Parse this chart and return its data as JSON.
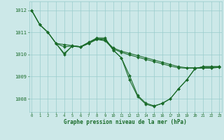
{
  "background_color": "#cce8e8",
  "grid_color": "#99cccc",
  "line_color": "#1a6b2a",
  "marker_color": "#1a6b2a",
  "xlabel": "Graphe pression niveau de la mer (hPa)",
  "xlabel_color": "#1a6b2a",
  "ylabel_ticks": [
    1008,
    1009,
    1010,
    1011,
    1012
  ],
  "xticks": [
    0,
    1,
    2,
    3,
    4,
    5,
    6,
    7,
    8,
    9,
    10,
    11,
    12,
    13,
    14,
    15,
    16,
    17,
    18,
    19,
    20,
    21,
    22,
    23
  ],
  "ylim": [
    1007.4,
    1012.4
  ],
  "xlim": [
    -0.3,
    23.3
  ],
  "series": [
    {
      "x": [
        0,
        1,
        2,
        3,
        4,
        5,
        6,
        7,
        8,
        9,
        10,
        11,
        12,
        13,
        14,
        15,
        16,
        17,
        18,
        19,
        20,
        21,
        22,
        23
      ],
      "y": [
        1012.0,
        1011.35,
        1011.0,
        1010.5,
        1010.45,
        1010.4,
        1010.35,
        1010.5,
        1010.7,
        1010.65,
        1010.3,
        1010.15,
        1010.05,
        1009.95,
        1009.85,
        1009.75,
        1009.65,
        1009.55,
        1009.45,
        1009.4,
        1009.4,
        1009.4,
        1009.4,
        1009.45
      ]
    },
    {
      "x": [
        0,
        1,
        2,
        3,
        4,
        5,
        6,
        7,
        8,
        9,
        10,
        11,
        12,
        13,
        14,
        15,
        16,
        17,
        18,
        19,
        20,
        21,
        22,
        23
      ],
      "y": [
        1012.0,
        1011.35,
        1011.0,
        1010.5,
        1010.35,
        1010.38,
        1010.33,
        1010.5,
        1010.68,
        1010.62,
        1010.25,
        1010.1,
        1009.98,
        1009.88,
        1009.78,
        1009.68,
        1009.58,
        1009.48,
        1009.4,
        1009.38,
        1009.38,
        1009.38,
        1009.38,
        1009.42
      ]
    },
    {
      "x": [
        3,
        4,
        5,
        6,
        7,
        8,
        9,
        10,
        11,
        12,
        13,
        14,
        15,
        16,
        17,
        18,
        19,
        20,
        21,
        22,
        23
      ],
      "y": [
        1010.5,
        1010.05,
        1010.38,
        1010.35,
        1010.55,
        1010.72,
        1010.7,
        1010.2,
        1009.85,
        1009.05,
        1008.15,
        1007.8,
        1007.68,
        1007.78,
        1008.0,
        1008.45,
        1008.85,
        1009.35,
        1009.45,
        1009.45,
        1009.45
      ]
    },
    {
      "x": [
        0,
        1,
        2,
        3,
        4,
        5,
        6,
        7,
        8,
        9,
        10,
        11,
        12,
        13,
        14,
        15,
        16,
        17,
        18,
        19,
        20,
        21,
        22,
        23
      ],
      "y": [
        1012.0,
        1011.35,
        1011.0,
        1010.5,
        1010.0,
        1010.4,
        1010.35,
        1010.55,
        1010.75,
        1010.75,
        1010.2,
        1009.85,
        1008.85,
        1008.1,
        1007.75,
        1007.65,
        1007.8,
        1008.0,
        1008.45,
        1008.85,
        1009.35,
        1009.45,
        1009.45,
        1009.45
      ]
    }
  ]
}
